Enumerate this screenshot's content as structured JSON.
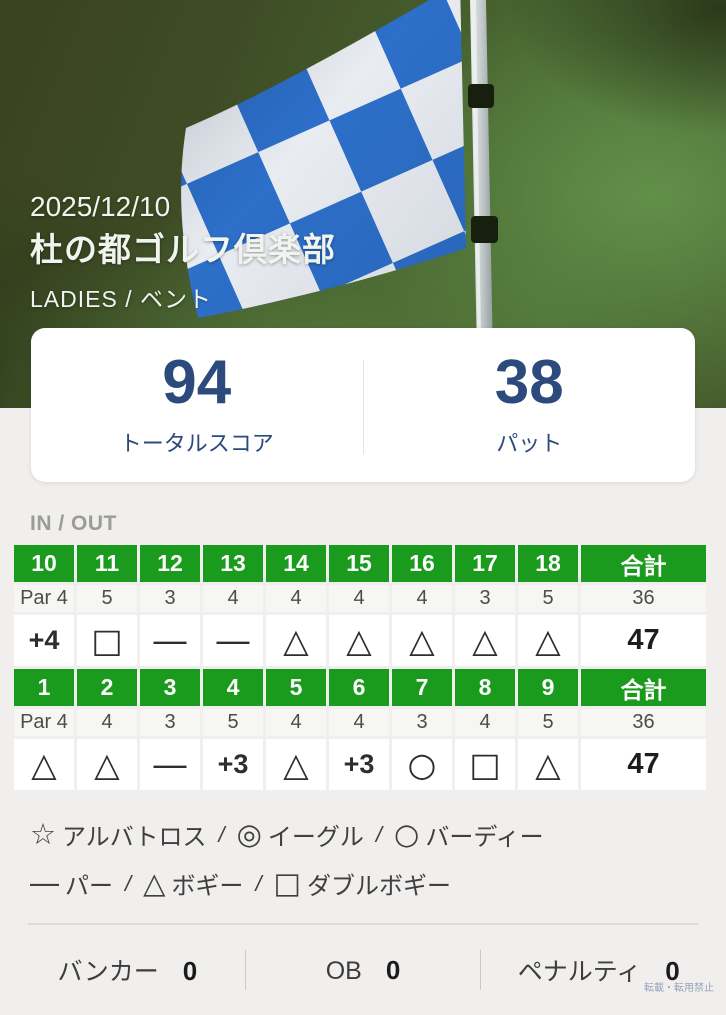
{
  "hero": {
    "date": "2025/12/10",
    "course": "杜の都ゴルフ倶楽部",
    "subtitle": "LADIES / ベント"
  },
  "summary": {
    "score": {
      "value": "94",
      "label": "トータルスコア"
    },
    "putts": {
      "value": "38",
      "label": "パット"
    }
  },
  "scorecard": {
    "title": "IN / OUT",
    "tables": [
      {
        "holes": [
          "10",
          "11",
          "12",
          "13",
          "14",
          "15",
          "16",
          "17",
          "18"
        ],
        "total_label": "合計",
        "pars": [
          "Par 4",
          "5",
          "3",
          "4",
          "4",
          "4",
          "4",
          "3",
          "5"
        ],
        "par_total": "36",
        "scores": [
          "+4",
          "□",
          "―",
          "―",
          "△",
          "△",
          "△",
          "△",
          "△"
        ],
        "score_total": "47"
      },
      {
        "holes": [
          "1",
          "2",
          "3",
          "4",
          "5",
          "6",
          "7",
          "8",
          "9"
        ],
        "total_label": "合計",
        "pars": [
          "Par 4",
          "4",
          "3",
          "5",
          "4",
          "4",
          "3",
          "4",
          "5"
        ],
        "par_total": "36",
        "scores": [
          "△",
          "△",
          "―",
          "+3",
          "△",
          "+3",
          "○",
          "□",
          "△"
        ],
        "score_total": "47"
      }
    ]
  },
  "legend": {
    "separator": "/",
    "rows": [
      [
        {
          "symbol": "☆",
          "label": "アルバトロス"
        },
        {
          "symbol": "◎",
          "label": "イーグル"
        },
        {
          "symbol": "○",
          "label": "バーディー"
        }
      ],
      [
        {
          "symbol": "―",
          "label": "パー"
        },
        {
          "symbol": "△",
          "label": "ボギー"
        },
        {
          "symbol": "□",
          "label": "ダブルボギー"
        }
      ]
    ]
  },
  "stats": {
    "items": [
      {
        "label": "バンカー",
        "value": "0"
      },
      {
        "label": "OB",
        "value": "0"
      },
      {
        "label": "ペナルティ",
        "value": "0"
      }
    ]
  },
  "footer": {
    "note": "転載・転用禁止"
  },
  "colors": {
    "header_green": "#1b9b1e",
    "score_navy": "#2c4a7c",
    "flag_blue": "#2d6fc9"
  }
}
